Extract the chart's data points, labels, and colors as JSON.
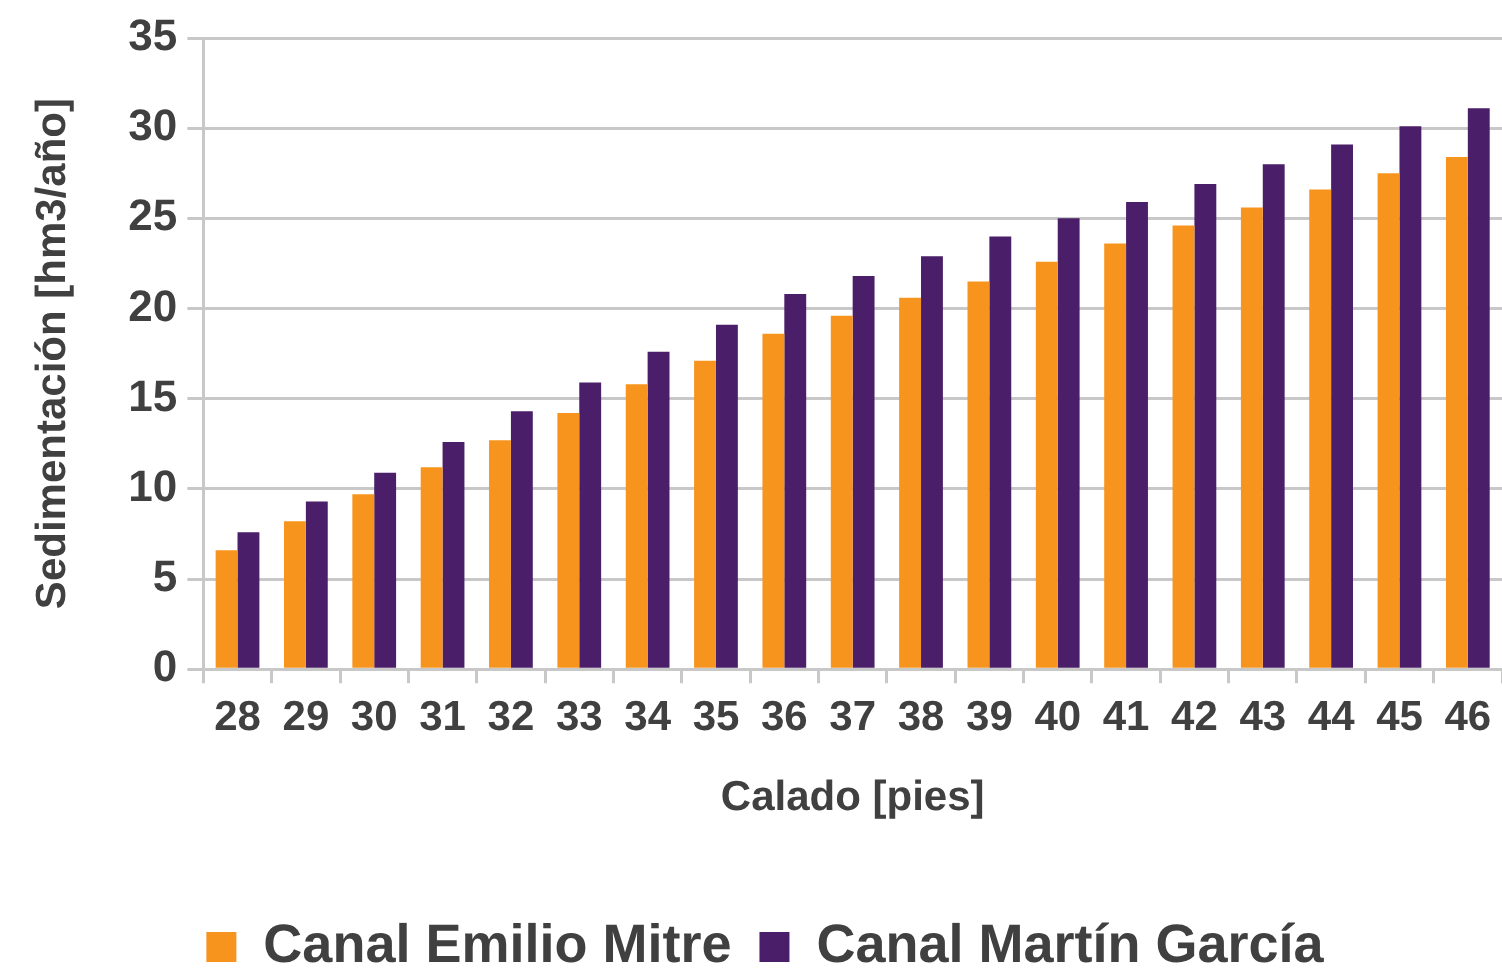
{
  "chart_data": {
    "type": "bar",
    "xlabel": "Calado [pies]",
    "ylabel": "Sedimentación [hm3/año]",
    "categories": [
      "28",
      "29",
      "30",
      "31",
      "32",
      "33",
      "34",
      "35",
      "36",
      "37",
      "38",
      "39",
      "40",
      "41",
      "42",
      "43",
      "44",
      "45",
      "46"
    ],
    "series": [
      {
        "name": "Canal Emilio Mitre",
        "color": "#f7941d",
        "values": [
          6.6,
          8.2,
          9.7,
          11.2,
          12.7,
          14.2,
          15.8,
          17.1,
          18.6,
          19.6,
          20.6,
          21.5,
          22.6,
          23.6,
          24.6,
          25.6,
          26.6,
          27.5,
          28.4
        ]
      },
      {
        "name": "Canal Martín García",
        "color": "#4a1e68",
        "values": [
          7.6,
          9.3,
          10.9,
          12.6,
          14.3,
          15.9,
          17.6,
          19.1,
          20.8,
          21.8,
          22.9,
          24.0,
          25.0,
          25.9,
          26.9,
          28.0,
          29.1,
          30.1,
          31.1
        ]
      }
    ],
    "ylim": [
      0,
      35
    ],
    "yticks": [
      0,
      5,
      10,
      15,
      20,
      25,
      30,
      35
    ],
    "grid": "y",
    "legend": "bottom"
  }
}
